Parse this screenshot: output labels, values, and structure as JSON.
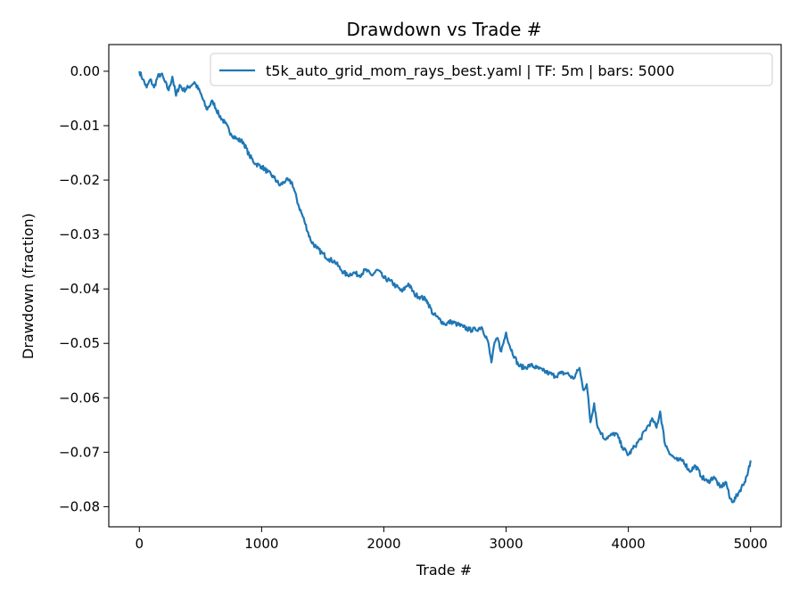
{
  "chart_data": {
    "type": "line",
    "title": "Drawdown vs Trade #",
    "xlabel": "Trade #",
    "ylabel": "Drawdown (fraction)",
    "xlim": [
      -250,
      5250
    ],
    "ylim": [
      -0.0837,
      0.0049
    ],
    "xticks": [
      0,
      1000,
      2000,
      3000,
      4000,
      5000
    ],
    "xtick_labels": [
      "0",
      "1000",
      "2000",
      "3000",
      "4000",
      "5000"
    ],
    "yticks": [
      0.0,
      -0.01,
      -0.02,
      -0.03,
      -0.04,
      -0.05,
      -0.06,
      -0.07,
      -0.08
    ],
    "ytick_labels": [
      "0.00",
      "−0.01",
      "−0.02",
      "−0.03",
      "−0.04",
      "−0.05",
      "−0.06",
      "−0.07",
      "−0.08"
    ],
    "grid": false,
    "legend_position": "top-right",
    "line_color": "#1f77b4",
    "series": [
      {
        "name": "t5k_auto_grid_mom_rays_best.yaml | TF: 5m | bars: 5000",
        "x": [
          0,
          30,
          60,
          90,
          120,
          150,
          180,
          210,
          240,
          270,
          300,
          330,
          360,
          400,
          450,
          500,
          550,
          600,
          650,
          700,
          750,
          800,
          850,
          900,
          950,
          1000,
          1050,
          1100,
          1150,
          1200,
          1250,
          1300,
          1350,
          1400,
          1450,
          1500,
          1550,
          1600,
          1650,
          1700,
          1750,
          1800,
          1850,
          1900,
          1950,
          2000,
          2050,
          2100,
          2150,
          2200,
          2250,
          2300,
          2350,
          2400,
          2450,
          2500,
          2550,
          2600,
          2650,
          2700,
          2750,
          2800,
          2850,
          2880,
          2900,
          2930,
          2960,
          3000,
          3030,
          3070,
          3100,
          3150,
          3200,
          3250,
          3300,
          3350,
          3400,
          3450,
          3500,
          3550,
          3600,
          3630,
          3660,
          3690,
          3720,
          3750,
          3780,
          3800,
          3850,
          3900,
          3950,
          4000,
          4050,
          4100,
          4150,
          4200,
          4230,
          4260,
          4300,
          4350,
          4400,
          4450,
          4500,
          4550,
          4600,
          4650,
          4700,
          4750,
          4800,
          4830,
          4860,
          4900,
          4950,
          4980,
          5000
        ],
        "y": [
          0.0,
          -0.0015,
          -0.003,
          -0.0015,
          -0.003,
          -0.001,
          -0.0005,
          -0.002,
          -0.0035,
          -0.001,
          -0.0045,
          -0.0025,
          -0.0035,
          -0.003,
          -0.002,
          -0.004,
          -0.007,
          -0.0055,
          -0.008,
          -0.0095,
          -0.0115,
          -0.0125,
          -0.013,
          -0.0155,
          -0.017,
          -0.0175,
          -0.0185,
          -0.0195,
          -0.021,
          -0.02,
          -0.0205,
          -0.0245,
          -0.0275,
          -0.031,
          -0.0325,
          -0.0335,
          -0.0345,
          -0.035,
          -0.0365,
          -0.0375,
          -0.037,
          -0.0375,
          -0.0365,
          -0.0375,
          -0.0365,
          -0.038,
          -0.0385,
          -0.0395,
          -0.0405,
          -0.039,
          -0.041,
          -0.0415,
          -0.042,
          -0.0445,
          -0.0455,
          -0.0465,
          -0.046,
          -0.0465,
          -0.047,
          -0.0475,
          -0.0475,
          -0.047,
          -0.0495,
          -0.0535,
          -0.0505,
          -0.049,
          -0.0515,
          -0.048,
          -0.0505,
          -0.0525,
          -0.054,
          -0.0545,
          -0.054,
          -0.0545,
          -0.055,
          -0.0555,
          -0.056,
          -0.0555,
          -0.0555,
          -0.0565,
          -0.0545,
          -0.0585,
          -0.0575,
          -0.0645,
          -0.061,
          -0.0655,
          -0.0665,
          -0.0675,
          -0.067,
          -0.0665,
          -0.069,
          -0.0705,
          -0.069,
          -0.0675,
          -0.0655,
          -0.064,
          -0.0655,
          -0.0625,
          -0.0685,
          -0.0705,
          -0.0715,
          -0.0715,
          -0.0735,
          -0.0725,
          -0.0745,
          -0.0755,
          -0.0745,
          -0.0765,
          -0.0755,
          -0.0785,
          -0.079,
          -0.0775,
          -0.0755,
          -0.0735,
          -0.0715
        ]
      }
    ]
  }
}
